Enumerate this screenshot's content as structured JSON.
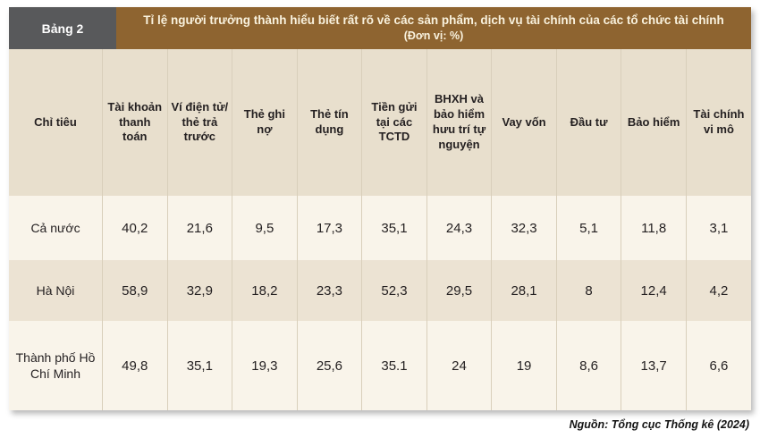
{
  "header": {
    "label": "Bảng 2",
    "title": "Tỉ lệ người trưởng thành hiểu biết rất rõ về các sản phẩm, dịch vụ tài chính của các tổ chức tài chính",
    "unit": "(Đơn vị: %)"
  },
  "table": {
    "columns": [
      "Chỉ tiêu",
      "Tài khoản thanh toán",
      "Ví điện tử/ thẻ trả trước",
      "Thẻ ghi nợ",
      "Thẻ tín dụng",
      "Tiền gửi tại các TCTD",
      "BHXH và bảo hiểm hưu trí tự nguyện",
      "Vay vốn",
      "Đầu tư",
      "Bảo hiểm",
      "Tài chính vi mô"
    ],
    "rows": [
      {
        "label": "Cả nước",
        "values": [
          "40,2",
          "21,6",
          "9,5",
          "17,3",
          "35,1",
          "24,3",
          "32,3",
          "5,1",
          "11,8",
          "3,1"
        ]
      },
      {
        "label": "Hà Nội",
        "values": [
          "58,9",
          "32,9",
          "18,2",
          "23,3",
          "52,3",
          "29,5",
          "28,1",
          "8",
          "12,4",
          "4,2"
        ]
      },
      {
        "label": "Thành phố Hồ Chí Minh",
        "values": [
          "49,8",
          "35,1",
          "19,3",
          "25,6",
          "35.1",
          "24",
          "19",
          "8,6",
          "13,7",
          "6,6"
        ]
      }
    ]
  },
  "footer": {
    "source": "Nguồn: Tổng cục Thống kê (2024)"
  },
  "colors": {
    "label_box_bg": "#58595b",
    "title_bar_bg": "#8e6430",
    "title_text": "#f9f2de",
    "header_row_bg": "#e8dfcd",
    "row_light_bg": "#f9f4ea",
    "row_dark_bg": "#ece3d3",
    "grid_line": "#d9cfbb",
    "text": "#231f20"
  },
  "chart_data": {
    "type": "table",
    "title": "Tỉ lệ người trưởng thành hiểu biết rất rõ về các sản phẩm, dịch vụ tài chính của các tổ chức tài chính",
    "unit": "%",
    "categories": [
      "Tài khoản thanh toán",
      "Ví điện tử/thẻ trả trước",
      "Thẻ ghi nợ",
      "Thẻ tín dụng",
      "Tiền gửi tại các TCTD",
      "BHXH và bảo hiểm hưu trí tự nguyện",
      "Vay vốn",
      "Đầu tư",
      "Bảo hiểm",
      "Tài chính vi mô"
    ],
    "series": [
      {
        "name": "Cả nước",
        "values": [
          40.2,
          21.6,
          9.5,
          17.3,
          35.1,
          24.3,
          32.3,
          5.1,
          11.8,
          3.1
        ]
      },
      {
        "name": "Hà Nội",
        "values": [
          58.9,
          32.9,
          18.2,
          23.3,
          52.3,
          29.5,
          28.1,
          8,
          12.4,
          4.2
        ]
      },
      {
        "name": "Thành phố Hồ Chí Minh",
        "values": [
          49.8,
          35.1,
          19.3,
          25.6,
          35.1,
          24,
          19,
          8.6,
          13.7,
          6.6
        ]
      }
    ],
    "source": "Nguồn: Tổng cục Thống kê (2024)"
  }
}
